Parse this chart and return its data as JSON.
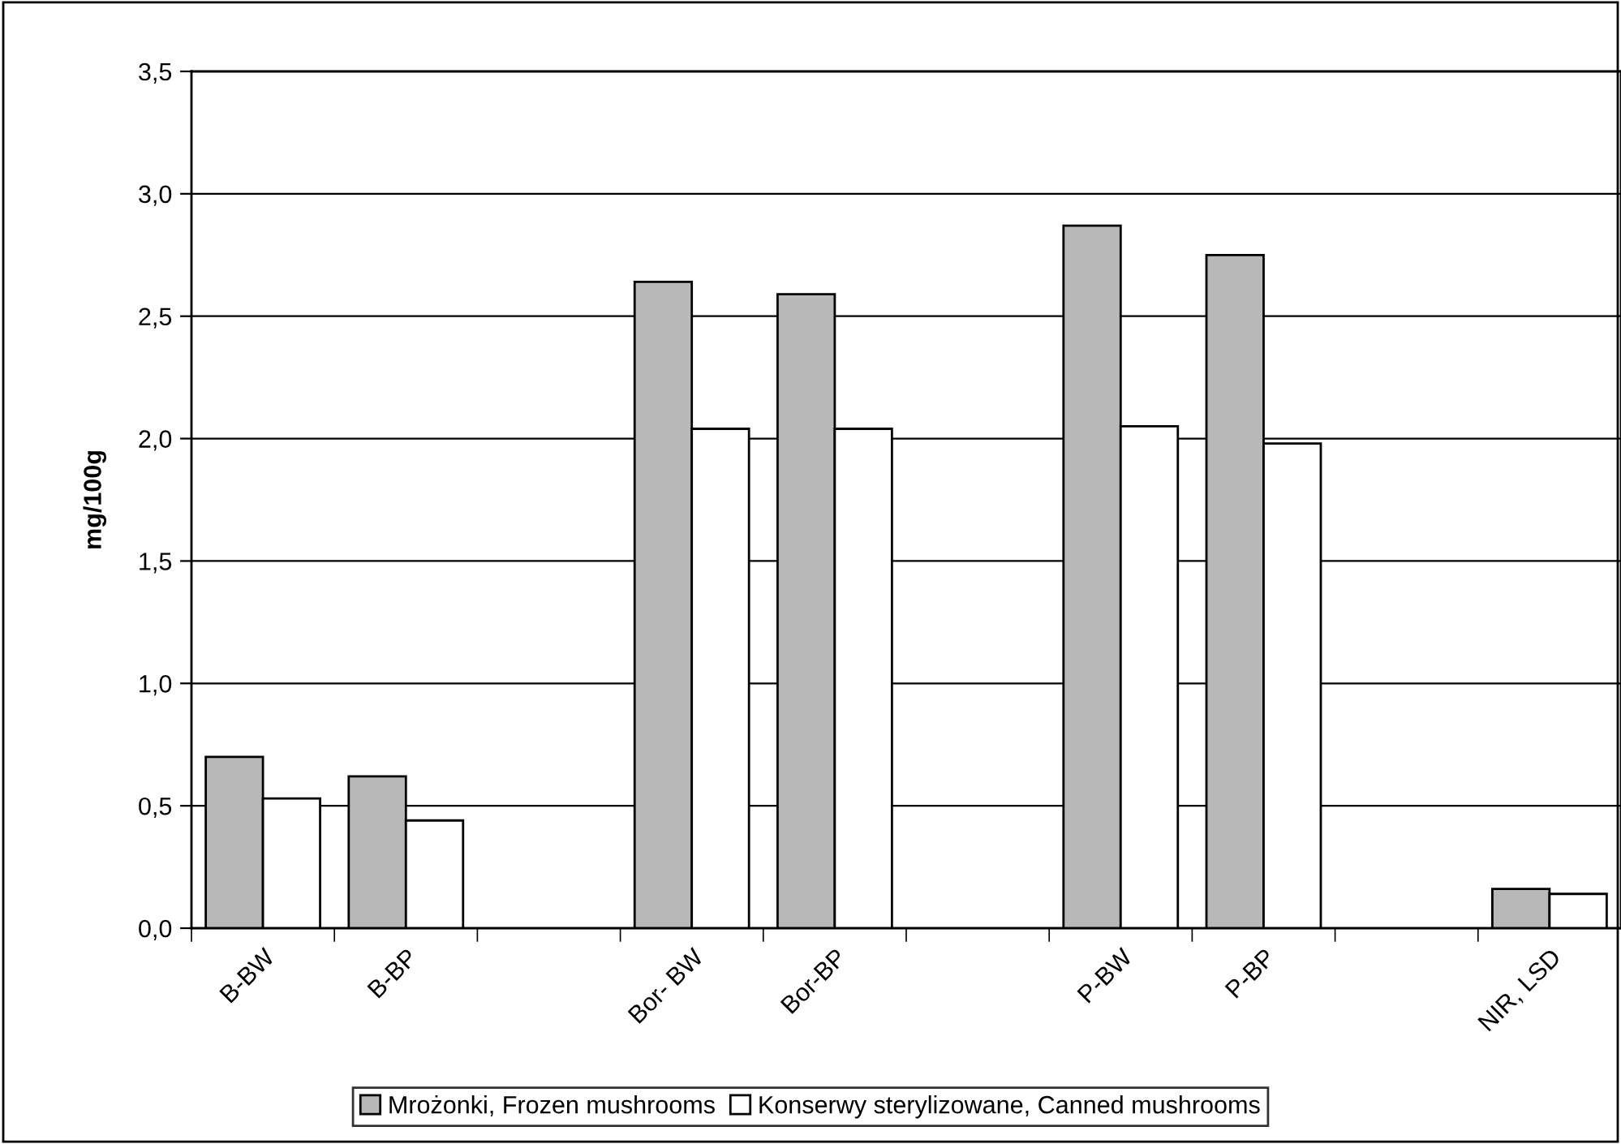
{
  "chart_data": {
    "type": "bar",
    "ylabel": "mg/100g",
    "categories": [
      "B-BW",
      "B-BP",
      null,
      "Bor- BW",
      "Bor-BP",
      null,
      "P-BW",
      "P-BP",
      null,
      "NIR, LSD"
    ],
    "series": [
      {
        "name": "Mrożonki, Frozen mushrooms",
        "color": "#b8b8b8",
        "values": [
          0.7,
          0.62,
          null,
          2.64,
          2.59,
          null,
          2.87,
          2.75,
          null,
          0.16
        ]
      },
      {
        "name": "Konserwy sterylizowane, Canned mushrooms",
        "color": "#ffffff",
        "values": [
          0.53,
          0.44,
          null,
          2.04,
          2.04,
          null,
          2.05,
          1.98,
          null,
          0.14
        ]
      }
    ],
    "ylim": [
      0,
      3.5
    ],
    "yticks": [
      {
        "value": 0,
        "label": "0,0"
      },
      {
        "value": 0.5,
        "label": "0,5"
      },
      {
        "value": 1,
        "label": "1,0"
      },
      {
        "value": 1.5,
        "label": "1,5"
      },
      {
        "value": 2,
        "label": "2,0"
      },
      {
        "value": 2.5,
        "label": "2,5"
      },
      {
        "value": 3,
        "label": "3,0"
      },
      {
        "value": 3.5,
        "label": "3,5"
      }
    ],
    "grid": "y",
    "legend": "bottom"
  }
}
